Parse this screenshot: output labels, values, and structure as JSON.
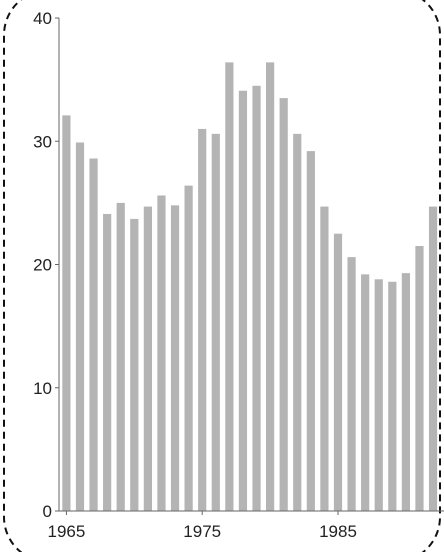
{
  "chart_data": {
    "type": "bar",
    "title": "",
    "xlabel": "",
    "ylabel": "",
    "ylim": [
      0,
      40
    ],
    "y_ticks": [
      0,
      10,
      20,
      30,
      40
    ],
    "x_tick_labels": [
      "1965",
      "1975",
      "1985"
    ],
    "grid": false,
    "legend": "none",
    "bar_color": "#b4b4b4",
    "categories": [
      "1965",
      "1966",
      "1967",
      "1968",
      "1969",
      "1970",
      "1971",
      "1972",
      "1973",
      "1974",
      "1975",
      "1976",
      "1977",
      "1978",
      "1979",
      "1980",
      "1981",
      "1982",
      "1983",
      "1984",
      "1985",
      "1986",
      "1987",
      "1988",
      "1989",
      "1990",
      "1991",
      "1992"
    ],
    "values": [
      32.1,
      29.9,
      28.6,
      24.1,
      25.0,
      23.7,
      24.7,
      25.6,
      24.8,
      26.4,
      31.0,
      30.6,
      36.4,
      34.1,
      34.5,
      36.4,
      33.5,
      30.6,
      29.2,
      24.7,
      22.5,
      20.6,
      19.2,
      18.8,
      18.6,
      19.3,
      21.5,
      24.7
    ]
  }
}
